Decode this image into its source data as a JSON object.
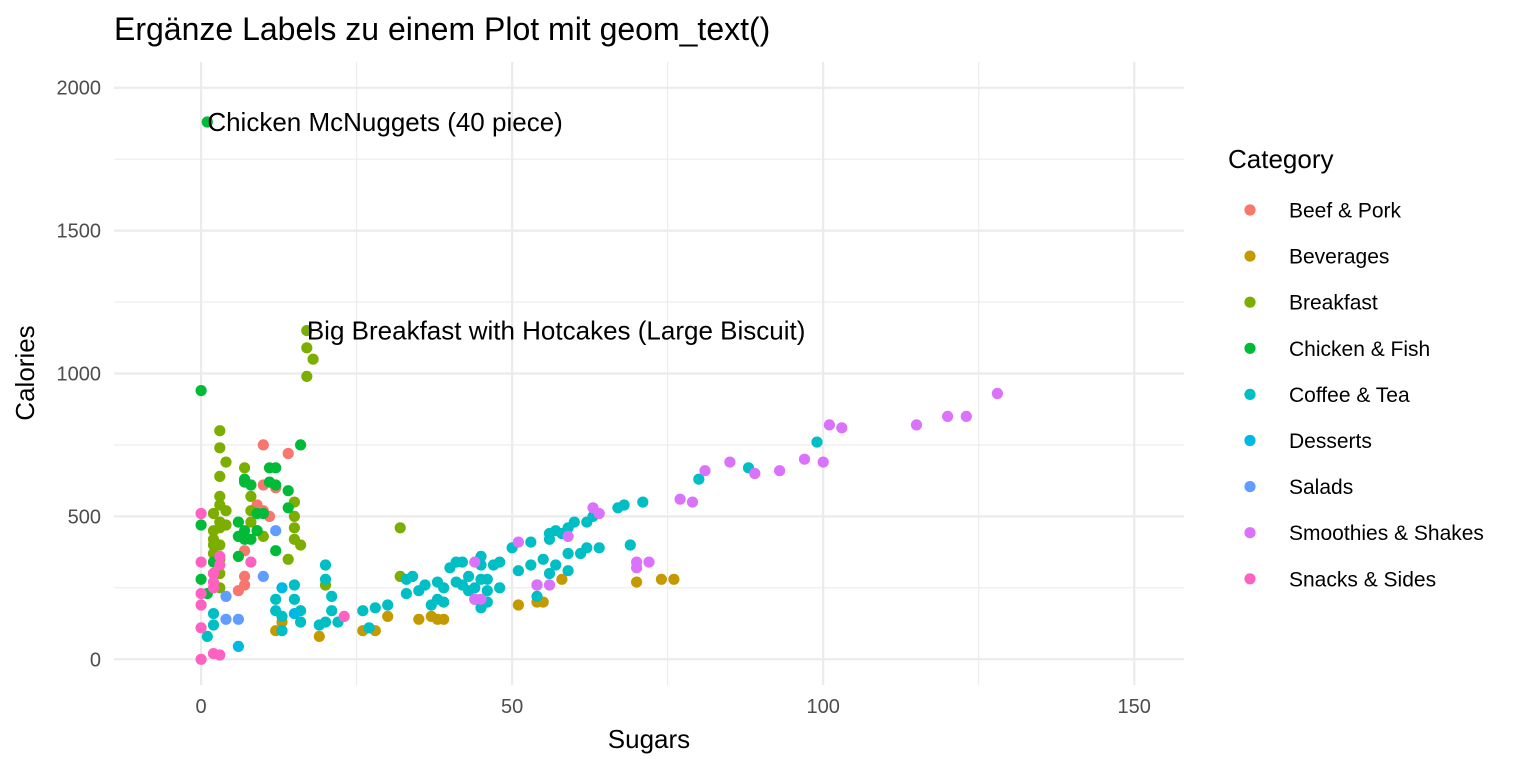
{
  "chart_data": {
    "type": "scatter",
    "title": "Ergänze Labels zu einem Plot mit geom_text()",
    "xlabel": "Sugars",
    "ylabel": "Calories",
    "xlim": [
      -14,
      158
    ],
    "ylim": [
      -90,
      2090
    ],
    "xticks": [
      0,
      50,
      100,
      150
    ],
    "yticks": [
      0,
      500,
      1000,
      1500,
      2000
    ],
    "xtick_labels": [
      "0",
      "50",
      "100",
      "150"
    ],
    "ytick_labels": [
      "0",
      "500",
      "1000",
      "1500",
      "2000"
    ],
    "grid": true,
    "legend": {
      "title": "Category",
      "placement": "right"
    },
    "annotations": [
      {
        "text": "Chicken McNuggets (40 piece)",
        "x": 1,
        "y": 1880
      },
      {
        "text": "Big Breakfast with Hotcakes (Large Biscuit)",
        "x": 17,
        "y": 1150
      }
    ],
    "series": [
      {
        "name": "Beef & Pork",
        "color": "#F8766D",
        "points": [
          [
            10,
            750
          ],
          [
            14,
            720
          ],
          [
            10,
            610
          ],
          [
            12,
            600
          ],
          [
            9,
            540
          ],
          [
            11,
            500
          ],
          [
            10,
            520
          ],
          [
            7,
            380
          ],
          [
            7,
            290
          ],
          [
            7,
            260
          ],
          [
            6,
            240
          ]
        ]
      },
      {
        "name": "Beverages",
        "color": "#C49A00",
        "points": [
          [
            12,
            100
          ],
          [
            13,
            130
          ],
          [
            19,
            80
          ],
          [
            26,
            100
          ],
          [
            28,
            100
          ],
          [
            30,
            150
          ],
          [
            35,
            140
          ],
          [
            37,
            150
          ],
          [
            38,
            140
          ],
          [
            39,
            140
          ],
          [
            51,
            190
          ],
          [
            54,
            200
          ],
          [
            55,
            200
          ],
          [
            58,
            280
          ],
          [
            70,
            270
          ],
          [
            74,
            280
          ],
          [
            76,
            280
          ]
        ]
      },
      {
        "name": "Breakfast",
        "color": "#7CAE00",
        "points": [
          [
            17,
            1150
          ],
          [
            17,
            1090
          ],
          [
            18,
            1050
          ],
          [
            17,
            990
          ],
          [
            3,
            800
          ],
          [
            3,
            740
          ],
          [
            4,
            690
          ],
          [
            3,
            640
          ],
          [
            3,
            570
          ],
          [
            2,
            510
          ],
          [
            2,
            450
          ],
          [
            3,
            540
          ],
          [
            3,
            480
          ],
          [
            3,
            460
          ],
          [
            4,
            520
          ],
          [
            4,
            470
          ],
          [
            2,
            420
          ],
          [
            2,
            400
          ],
          [
            2,
            370
          ],
          [
            3,
            400
          ],
          [
            3,
            350
          ],
          [
            2,
            300
          ],
          [
            3,
            300
          ],
          [
            3,
            250
          ],
          [
            7,
            670
          ],
          [
            8,
            570
          ],
          [
            8,
            520
          ],
          [
            8,
            480
          ],
          [
            9,
            450
          ],
          [
            10,
            430
          ],
          [
            15,
            550
          ],
          [
            15,
            500
          ],
          [
            15,
            460
          ],
          [
            14,
            350
          ],
          [
            15,
            420
          ],
          [
            16,
            400
          ],
          [
            20,
            260
          ],
          [
            32,
            460
          ],
          [
            32,
            290
          ]
        ]
      },
      {
        "name": "Chicken & Fish",
        "color": "#00BA38",
        "points": [
          [
            1,
            1880
          ],
          [
            0,
            940
          ],
          [
            16,
            750
          ],
          [
            7,
            620
          ],
          [
            7,
            630
          ],
          [
            8,
            610
          ],
          [
            11,
            670
          ],
          [
            12,
            670
          ],
          [
            11,
            620
          ],
          [
            12,
            610
          ],
          [
            14,
            590
          ],
          [
            14,
            530
          ],
          [
            9,
            510
          ],
          [
            10,
            510
          ],
          [
            6,
            480
          ],
          [
            6,
            430
          ],
          [
            7,
            450
          ],
          [
            8,
            420
          ],
          [
            7,
            420
          ],
          [
            12,
            380
          ],
          [
            6,
            360
          ],
          [
            9,
            450
          ],
          [
            0,
            470
          ],
          [
            1,
            230
          ],
          [
            0,
            280
          ],
          [
            2,
            340
          ]
        ]
      },
      {
        "name": "Coffee & Tea",
        "color": "#00BFC4",
        "points": [
          [
            1,
            80
          ],
          [
            2,
            160
          ],
          [
            2,
            120
          ],
          [
            12,
            210
          ],
          [
            12,
            170
          ],
          [
            13,
            150
          ],
          [
            13,
            100
          ],
          [
            15,
            260
          ],
          [
            15,
            210
          ],
          [
            16,
            170
          ],
          [
            16,
            130
          ],
          [
            19,
            120
          ],
          [
            20,
            330
          ],
          [
            20,
            280
          ],
          [
            21,
            220
          ],
          [
            21,
            170
          ],
          [
            22,
            130
          ],
          [
            20,
            130
          ],
          [
            26,
            170
          ],
          [
            27,
            110
          ],
          [
            28,
            180
          ],
          [
            30,
            190
          ],
          [
            33,
            280
          ],
          [
            34,
            290
          ],
          [
            33,
            230
          ],
          [
            35,
            240
          ],
          [
            36,
            260
          ],
          [
            37,
            190
          ],
          [
            38,
            210
          ],
          [
            38,
            270
          ],
          [
            39,
            200
          ],
          [
            39,
            250
          ],
          [
            40,
            320
          ],
          [
            41,
            340
          ],
          [
            42,
            340
          ],
          [
            41,
            270
          ],
          [
            42,
            260
          ],
          [
            43,
            290
          ],
          [
            44,
            250
          ],
          [
            45,
            360
          ],
          [
            45,
            330
          ],
          [
            45,
            280
          ],
          [
            46,
            280
          ],
          [
            46,
            240
          ],
          [
            47,
            330
          ],
          [
            48,
            340
          ],
          [
            48,
            250
          ],
          [
            45,
            180
          ],
          [
            50,
            390
          ],
          [
            51,
            310
          ],
          [
            53,
            410
          ],
          [
            53,
            330
          ],
          [
            55,
            350
          ],
          [
            56,
            300
          ],
          [
            56,
            420
          ],
          [
            56,
            440
          ],
          [
            57,
            450
          ],
          [
            58,
            440
          ],
          [
            57,
            330
          ],
          [
            59,
            460
          ],
          [
            60,
            480
          ],
          [
            59,
            370
          ],
          [
            59,
            310
          ],
          [
            61,
            370
          ],
          [
            62,
            390
          ],
          [
            62,
            480
          ],
          [
            64,
            390
          ],
          [
            63,
            500
          ],
          [
            67,
            530
          ],
          [
            68,
            540
          ],
          [
            71,
            550
          ],
          [
            69,
            400
          ],
          [
            80,
            630
          ],
          [
            88,
            670
          ],
          [
            99,
            760
          ],
          [
            54,
            220
          ],
          [
            54,
            260
          ],
          [
            44,
            210
          ],
          [
            46,
            200
          ],
          [
            43,
            240
          ]
        ]
      },
      {
        "name": "Desserts",
        "color": "#00B9E3",
        "points": [
          [
            6,
            45
          ],
          [
            13,
            250
          ],
          [
            15,
            160
          ]
        ]
      },
      {
        "name": "Salads",
        "color": "#619CFF",
        "points": [
          [
            4,
            220
          ],
          [
            4,
            140
          ],
          [
            6,
            140
          ],
          [
            10,
            290
          ],
          [
            12,
            450
          ]
        ]
      },
      {
        "name": "Smoothies & Shakes",
        "color": "#DB72FB",
        "points": [
          [
            44,
            340
          ],
          [
            44,
            210
          ],
          [
            45,
            210
          ],
          [
            51,
            410
          ],
          [
            54,
            260
          ],
          [
            56,
            260
          ],
          [
            59,
            430
          ],
          [
            63,
            530
          ],
          [
            64,
            510
          ],
          [
            70,
            340
          ],
          [
            70,
            320
          ],
          [
            72,
            340
          ],
          [
            77,
            560
          ],
          [
            79,
            550
          ],
          [
            81,
            660
          ],
          [
            85,
            690
          ],
          [
            89,
            650
          ],
          [
            93,
            660
          ],
          [
            97,
            700
          ],
          [
            100,
            690
          ],
          [
            101,
            820
          ],
          [
            103,
            810
          ],
          [
            115,
            820
          ],
          [
            120,
            850
          ],
          [
            123,
            850
          ],
          [
            128,
            930
          ]
        ]
      },
      {
        "name": "Snacks & Sides",
        "color": "#FF61C3",
        "points": [
          [
            0,
            510
          ],
          [
            0,
            340
          ],
          [
            0,
            230
          ],
          [
            0,
            110
          ],
          [
            0,
            0
          ],
          [
            2,
            270
          ],
          [
            2,
            250
          ],
          [
            2,
            20
          ],
          [
            3,
            15
          ],
          [
            3,
            360
          ],
          [
            3,
            330
          ],
          [
            8,
            340
          ],
          [
            23,
            150
          ],
          [
            0,
            190
          ],
          [
            2,
            300
          ]
        ]
      }
    ]
  }
}
